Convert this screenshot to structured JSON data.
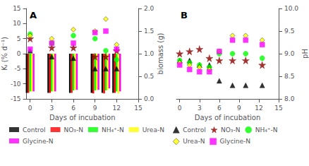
{
  "chart_data": [
    {
      "type": "bar",
      "annotations": [
        "A"
      ],
      "xlabel": "Days of incubation",
      "ylabel": "Kᵢ (% d⁻¹)",
      "y2label": "biomass (g)",
      "x": [
        0,
        3,
        6,
        9,
        10.5,
        12
      ],
      "xlim": [
        -0.5,
        15
      ],
      "xticks": [
        0,
        3,
        6,
        9,
        12,
        15
      ],
      "ylim": [
        -15,
        15
      ],
      "yticks": [
        -15,
        -10,
        -5,
        0,
        5,
        10,
        15
      ],
      "y2lim": [
        0.0,
        2.0
      ],
      "y2ticks": [
        {
          "value": 0,
          "label": "0.0"
        },
        0.5,
        {
          "value": 1,
          "label": "1.0"
        },
        1.5,
        {
          "value": 2,
          "label": "2.0"
        }
      ],
      "grid": false,
      "legend": "bottom left",
      "series": [
        {
          "name": "Control",
          "type": "bar",
          "color": "black",
          "values": [
            -13.0,
            -13.0,
            -13.0,
            -13.0,
            -13.0,
            -13.0
          ]
        },
        {
          "name": "NO₃-N",
          "type": "bar",
          "color": "red",
          "values": [
            -13.0,
            -13.0,
            -13.0,
            -13.2,
            -13.2,
            -13.0
          ]
        },
        {
          "name": "NH₄⁺-N",
          "type": "bar",
          "color": "lime",
          "values": [
            -12.5,
            -12.5,
            -12.2,
            -12.2,
            -12.2,
            -12.5
          ]
        },
        {
          "name": "Urea-N",
          "type": "bar",
          "color": "yellow",
          "values": [
            -12.5,
            -12.5,
            -12.0,
            -12.0,
            -12.0,
            -13.2
          ]
        },
        {
          "name": "Glycine-N",
          "type": "bar",
          "color": "magenta",
          "values": [
            -12.5,
            -12.5,
            -12.0,
            -12.0,
            -11.5,
            -12.5
          ]
        },
        {
          "name": "Control",
          "type": "scatter",
          "color": "black",
          "marker": "triangle",
          "values": [
            1.0,
            -1.0,
            -1.5,
            -5.0,
            -5.0,
            -5.0
          ]
        },
        {
          "name": "NO₃-N",
          "type": "scatter",
          "color": "darkred",
          "marker": "star",
          "values": [
            5.0,
            2.0,
            2.0,
            -1.0,
            -1.0,
            1.0
          ]
        },
        {
          "name": "NH₄⁺-N",
          "type": "scatter",
          "color": "lime",
          "marker": "circle",
          "values": [
            6.5,
            3.5,
            6.0,
            5.0,
            1.0,
            -2.0
          ]
        },
        {
          "name": "Urea-N",
          "type": "scatter",
          "color": "yellow",
          "marker": "diamond",
          "values": [
            6.0,
            5.0,
            8.0,
            7.5,
            11.5,
            3.0
          ]
        },
        {
          "name": "Glycine-N",
          "type": "scatter",
          "color": "magenta",
          "marker": "square",
          "values": [
            1.5,
            3.5,
            3.5,
            7.0,
            7.5,
            1.5
          ]
        }
      ]
    },
    {
      "type": "scatter",
      "annotations": [
        "B"
      ],
      "xlabel": "Days of incubation",
      "y2label": "pH",
      "x": [
        0,
        1.5,
        3,
        4.5,
        6,
        8,
        10,
        12.5
      ],
      "xlim": [
        -0.5,
        15
      ],
      "xticks": [
        0,
        3,
        6,
        9,
        12,
        15
      ],
      "y2lim": [
        8.0,
        10.0
      ],
      "y2ticks": [
        {
          "value": 8,
          "label": "8.0"
        },
        8.5,
        {
          "value": 9,
          "label": "9.0"
        },
        9.5,
        {
          "value": 10,
          "label": "10.0"
        }
      ],
      "grid": false,
      "legend": "bottom right",
      "series": [
        {
          "name": "Control",
          "color": "black",
          "marker": "triangle",
          "axis": "y2",
          "values": [
            8.85,
            8.85,
            8.75,
            8.75,
            8.4,
            8.3,
            8.3,
            8.3
          ]
        },
        {
          "name": "NO₃-N",
          "color": "darkred",
          "marker": "star",
          "axis": "y2",
          "values": [
            9.0,
            9.05,
            9.1,
            8.9,
            8.85,
            8.85,
            8.85,
            8.75
          ]
        },
        {
          "name": "NH₄⁺-N",
          "color": "lime",
          "marker": "circle",
          "axis": "y2",
          "values": [
            8.85,
            8.8,
            8.75,
            8.7,
            9.0,
            9.0,
            9.0,
            8.9
          ]
        },
        {
          "name": "Urea-N",
          "color": "yellow",
          "marker": "diamond",
          "axis": "y2",
          "values": [
            8.8,
            8.75,
            8.7,
            8.65,
            9.05,
            9.4,
            9.4,
            9.3
          ]
        },
        {
          "name": "Glycine-N",
          "color": "magenta",
          "marker": "square",
          "axis": "y2",
          "values": [
            8.75,
            8.65,
            8.6,
            8.6,
            9.05,
            9.3,
            9.3,
            9.2
          ]
        }
      ]
    }
  ]
}
